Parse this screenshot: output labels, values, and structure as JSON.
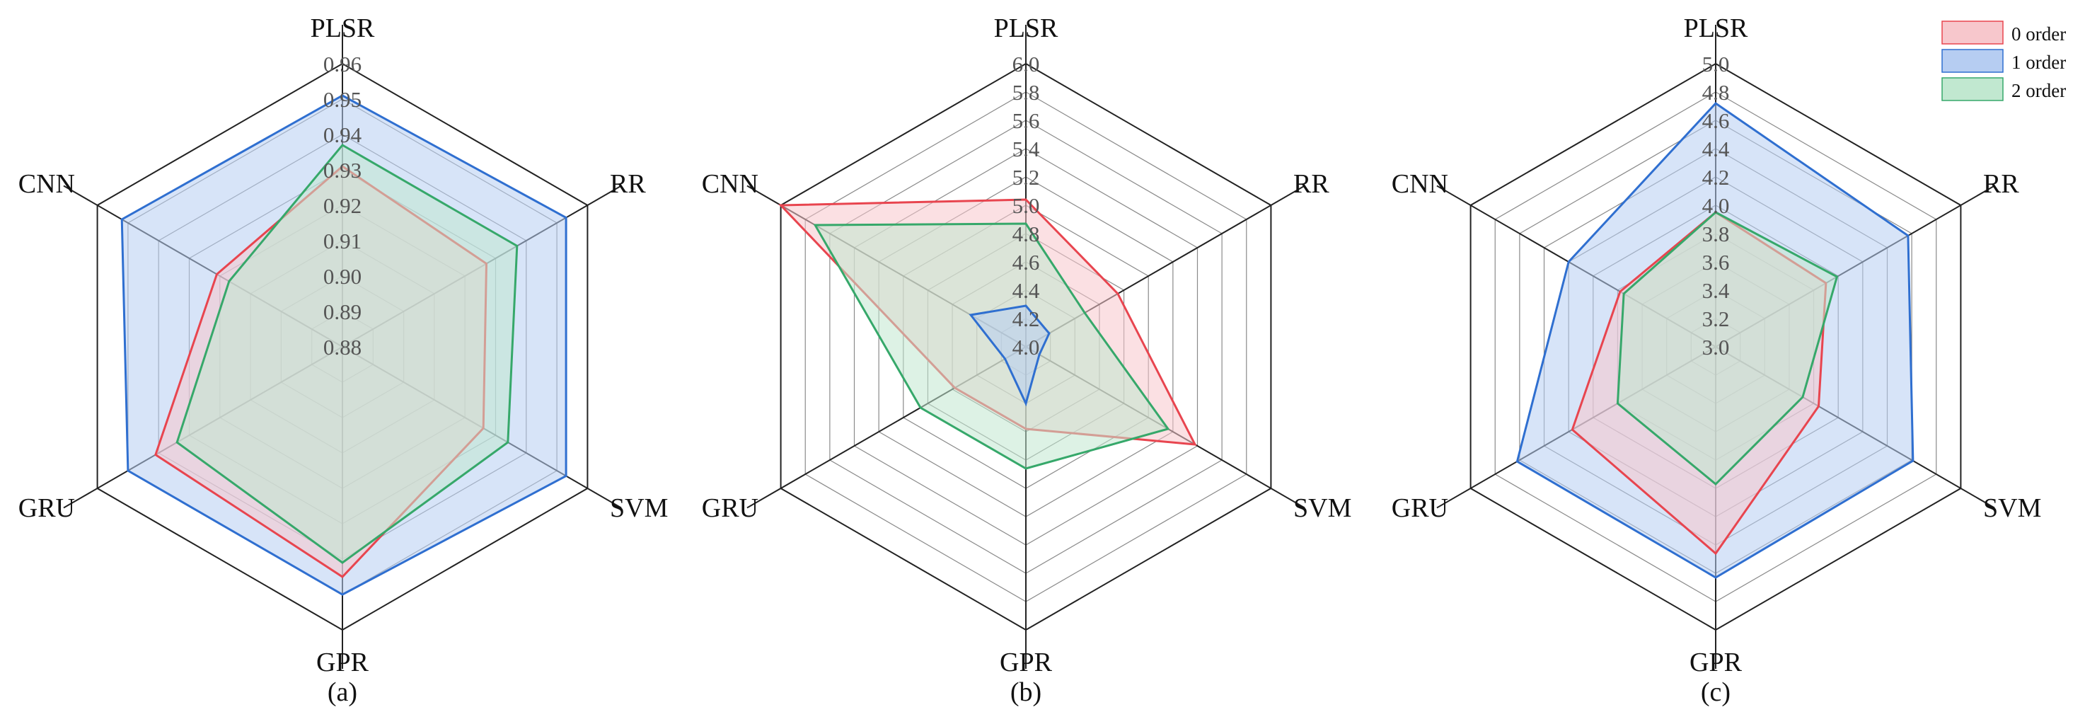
{
  "legend": {
    "entries": [
      {
        "label": "0 order",
        "color": "#e8454f",
        "fill": "#f7c7cc"
      },
      {
        "label": "1 order",
        "color": "#2f6fd0",
        "fill": "#b6cdf2"
      },
      {
        "label": "2 order",
        "color": "#36a86a",
        "fill": "#c1e8d0"
      }
    ]
  },
  "chart_data": [
    {
      "type": "radar",
      "caption": "(a)",
      "axes": [
        "PLSR",
        "RR",
        "SVM",
        "GPR",
        "GRU",
        "CNN"
      ],
      "ticks": [
        "0.88",
        "0.89",
        "0.90",
        "0.91",
        "0.92",
        "0.93",
        "0.94",
        "0.95",
        "0.96"
      ],
      "rlim": [
        0.88,
        0.96
      ],
      "grid": true,
      "series": [
        {
          "name": "1 order",
          "values": [
            0.951,
            0.953,
            0.953,
            0.95,
            0.95,
            0.952
          ]
        },
        {
          "name": "0 order",
          "values": [
            0.931,
            0.927,
            0.926,
            0.945,
            0.941,
            0.921
          ]
        },
        {
          "name": "2 order",
          "values": [
            0.937,
            0.937,
            0.934,
            0.941,
            0.934,
            0.917
          ]
        }
      ]
    },
    {
      "type": "radar",
      "caption": "(b)",
      "axes": [
        "PLSR",
        "RR",
        "SVM",
        "GPR",
        "GRU",
        "CNN"
      ],
      "ticks": [
        "4.0",
        "4.2",
        "4.4",
        "4.6",
        "4.8",
        "5.0",
        "5.2",
        "5.4",
        "5.6",
        "5.8",
        "6.0"
      ],
      "rlim": [
        4.0,
        6.0
      ],
      "grid": true,
      "series": [
        {
          "name": "0 order",
          "values": [
            5.04,
            4.75,
            5.38,
            4.58,
            4.58,
            6.0
          ]
        },
        {
          "name": "2 order",
          "values": [
            4.87,
            4.48,
            5.16,
            4.86,
            4.86,
            5.72
          ]
        },
        {
          "name": "1 order",
          "values": [
            4.29,
            4.19,
            4.11,
            4.4,
            4.17,
            4.45
          ]
        }
      ]
    },
    {
      "type": "radar",
      "caption": "(c)",
      "axes": [
        "PLSR",
        "RR",
        "SVM",
        "GPR",
        "GRU",
        "CNN"
      ],
      "ticks": [
        "3.0",
        "3.2",
        "3.4",
        "3.6",
        "3.8",
        "4.0",
        "4.2",
        "4.4",
        "4.6",
        "4.8",
        "5.0"
      ],
      "rlim": [
        3.0,
        5.0
      ],
      "grid": true,
      "series": [
        {
          "name": "1 order",
          "values": [
            4.72,
            4.57,
            4.61,
            4.63,
            4.62,
            4.2
          ]
        },
        {
          "name": "0 order",
          "values": [
            3.95,
            3.9,
            3.84,
            4.46,
            4.17,
            3.78
          ]
        },
        {
          "name": "2 order",
          "values": [
            3.95,
            3.99,
            3.71,
            3.97,
            3.8,
            3.75
          ]
        }
      ]
    }
  ]
}
